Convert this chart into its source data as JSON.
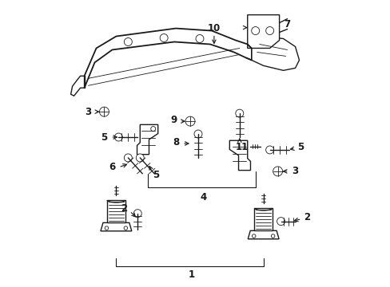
{
  "bg_color": "#ffffff",
  "line_color": "#1a1a1a",
  "fig_width": 4.89,
  "fig_height": 3.6,
  "dpi": 100,
  "label_fontsize": 8.5,
  "label_fontweight": "bold",
  "lw_main": 1.0,
  "lw_thin": 0.6,
  "lw_leader": 0.8
}
